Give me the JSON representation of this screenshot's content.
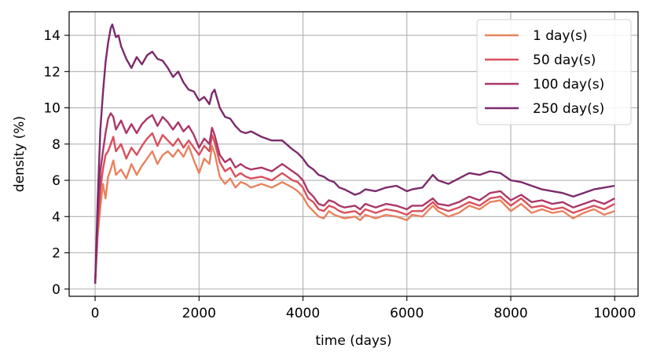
{
  "chart_data": {
    "type": "line",
    "xlabel": "time (days)",
    "ylabel": "density (%)",
    "xlim": [
      -500,
      10450
    ],
    "ylim": [
      -0.4,
      15.3
    ],
    "xticks": [
      0,
      2000,
      4000,
      6000,
      8000,
      10000
    ],
    "yticks": [
      0,
      2,
      4,
      6,
      8,
      10,
      12,
      14
    ],
    "grid": true,
    "legend_position": "top-right",
    "series": [
      {
        "name": "1 day(s)",
        "color": "#e8825f",
        "points": [
          [
            0,
            0.3
          ],
          [
            50,
            3.0
          ],
          [
            100,
            4.5
          ],
          [
            150,
            5.8
          ],
          [
            200,
            5.0
          ],
          [
            250,
            6.2
          ],
          [
            300,
            6.6
          ],
          [
            350,
            7.1
          ],
          [
            400,
            6.3
          ],
          [
            500,
            6.6
          ],
          [
            600,
            6.1
          ],
          [
            700,
            6.9
          ],
          [
            800,
            6.3
          ],
          [
            900,
            6.8
          ],
          [
            1000,
            7.2
          ],
          [
            1100,
            7.6
          ],
          [
            1200,
            6.9
          ],
          [
            1300,
            7.4
          ],
          [
            1400,
            7.6
          ],
          [
            1500,
            7.3
          ],
          [
            1600,
            7.7
          ],
          [
            1700,
            7.3
          ],
          [
            1800,
            7.9
          ],
          [
            1900,
            7.1
          ],
          [
            2000,
            6.4
          ],
          [
            2100,
            7.2
          ],
          [
            2200,
            6.9
          ],
          [
            2250,
            7.9
          ],
          [
            2300,
            7.5
          ],
          [
            2400,
            6.2
          ],
          [
            2500,
            5.8
          ],
          [
            2600,
            6.1
          ],
          [
            2700,
            5.6
          ],
          [
            2800,
            5.9
          ],
          [
            2900,
            5.8
          ],
          [
            3000,
            5.6
          ],
          [
            3200,
            5.8
          ],
          [
            3400,
            5.6
          ],
          [
            3600,
            5.9
          ],
          [
            3800,
            5.6
          ],
          [
            3900,
            5.4
          ],
          [
            4000,
            5.1
          ],
          [
            4100,
            4.6
          ],
          [
            4200,
            4.3
          ],
          [
            4300,
            4.0
          ],
          [
            4400,
            3.9
          ],
          [
            4500,
            4.3
          ],
          [
            4600,
            4.1
          ],
          [
            4700,
            4.0
          ],
          [
            4800,
            3.9
          ],
          [
            5000,
            4.0
          ],
          [
            5100,
            3.8
          ],
          [
            5200,
            4.1
          ],
          [
            5400,
            3.9
          ],
          [
            5600,
            4.1
          ],
          [
            5800,
            4.0
          ],
          [
            6000,
            3.8
          ],
          [
            6100,
            4.1
          ],
          [
            6300,
            4.0
          ],
          [
            6500,
            4.6
          ],
          [
            6600,
            4.3
          ],
          [
            6800,
            4.0
          ],
          [
            7000,
            4.2
          ],
          [
            7200,
            4.6
          ],
          [
            7400,
            4.4
          ],
          [
            7600,
            4.8
          ],
          [
            7800,
            4.9
          ],
          [
            8000,
            4.3
          ],
          [
            8200,
            4.7
          ],
          [
            8400,
            4.2
          ],
          [
            8600,
            4.4
          ],
          [
            8800,
            4.2
          ],
          [
            9000,
            4.3
          ],
          [
            9200,
            3.9
          ],
          [
            9400,
            4.2
          ],
          [
            9600,
            4.4
          ],
          [
            9800,
            4.1
          ],
          [
            10000,
            4.3
          ]
        ]
      },
      {
        "name": "50 day(s)",
        "color": "#d94f5c",
        "points": [
          [
            0,
            0.3
          ],
          [
            50,
            3.5
          ],
          [
            100,
            5.5
          ],
          [
            150,
            6.6
          ],
          [
            200,
            7.4
          ],
          [
            250,
            7.6
          ],
          [
            300,
            8.0
          ],
          [
            350,
            8.4
          ],
          [
            400,
            7.6
          ],
          [
            500,
            8.0
          ],
          [
            600,
            7.2
          ],
          [
            700,
            7.8
          ],
          [
            800,
            7.4
          ],
          [
            900,
            7.9
          ],
          [
            1000,
            8.3
          ],
          [
            1100,
            8.6
          ],
          [
            1200,
            7.9
          ],
          [
            1300,
            8.5
          ],
          [
            1400,
            8.2
          ],
          [
            1500,
            7.9
          ],
          [
            1600,
            8.3
          ],
          [
            1700,
            7.8
          ],
          [
            1800,
            8.2
          ],
          [
            1900,
            7.8
          ],
          [
            2000,
            7.4
          ],
          [
            2100,
            7.9
          ],
          [
            2200,
            7.6
          ],
          [
            2250,
            8.5
          ],
          [
            2300,
            8.1
          ],
          [
            2400,
            7.0
          ],
          [
            2500,
            6.5
          ],
          [
            2600,
            6.7
          ],
          [
            2700,
            6.2
          ],
          [
            2800,
            6.4
          ],
          [
            2900,
            6.2
          ],
          [
            3000,
            6.1
          ],
          [
            3200,
            6.2
          ],
          [
            3400,
            6.0
          ],
          [
            3600,
            6.4
          ],
          [
            3800,
            6.0
          ],
          [
            3900,
            5.9
          ],
          [
            4000,
            5.6
          ],
          [
            4100,
            5.0
          ],
          [
            4200,
            4.8
          ],
          [
            4300,
            4.4
          ],
          [
            4400,
            4.3
          ],
          [
            4500,
            4.6
          ],
          [
            4600,
            4.5
          ],
          [
            4700,
            4.3
          ],
          [
            4800,
            4.2
          ],
          [
            5000,
            4.3
          ],
          [
            5100,
            4.1
          ],
          [
            5200,
            4.4
          ],
          [
            5400,
            4.2
          ],
          [
            5600,
            4.4
          ],
          [
            5800,
            4.3
          ],
          [
            6000,
            4.1
          ],
          [
            6100,
            4.3
          ],
          [
            6300,
            4.3
          ],
          [
            6500,
            4.8
          ],
          [
            6600,
            4.5
          ],
          [
            6800,
            4.3
          ],
          [
            7000,
            4.5
          ],
          [
            7200,
            4.8
          ],
          [
            7400,
            4.6
          ],
          [
            7600,
            5.0
          ],
          [
            7800,
            5.1
          ],
          [
            8000,
            4.6
          ],
          [
            8200,
            5.0
          ],
          [
            8400,
            4.5
          ],
          [
            8600,
            4.6
          ],
          [
            8800,
            4.4
          ],
          [
            9000,
            4.5
          ],
          [
            9200,
            4.2
          ],
          [
            9400,
            4.4
          ],
          [
            9600,
            4.6
          ],
          [
            9800,
            4.4
          ],
          [
            10000,
            4.7
          ]
        ]
      },
      {
        "name": "100 day(s)",
        "color": "#ab3668",
        "points": [
          [
            0,
            0.3
          ],
          [
            50,
            4.0
          ],
          [
            100,
            6.5
          ],
          [
            150,
            7.6
          ],
          [
            200,
            8.6
          ],
          [
            250,
            9.4
          ],
          [
            300,
            9.7
          ],
          [
            350,
            9.5
          ],
          [
            400,
            8.8
          ],
          [
            500,
            9.3
          ],
          [
            600,
            8.6
          ],
          [
            700,
            9.1
          ],
          [
            800,
            8.6
          ],
          [
            900,
            9.1
          ],
          [
            1000,
            9.4
          ],
          [
            1100,
            9.6
          ],
          [
            1200,
            9.0
          ],
          [
            1300,
            9.5
          ],
          [
            1400,
            9.2
          ],
          [
            1500,
            8.8
          ],
          [
            1600,
            9.2
          ],
          [
            1700,
            8.7
          ],
          [
            1800,
            9.0
          ],
          [
            1900,
            8.5
          ],
          [
            2000,
            7.8
          ],
          [
            2100,
            8.3
          ],
          [
            2200,
            8.0
          ],
          [
            2250,
            8.9
          ],
          [
            2300,
            8.5
          ],
          [
            2400,
            7.4
          ],
          [
            2500,
            7.0
          ],
          [
            2600,
            7.2
          ],
          [
            2700,
            6.7
          ],
          [
            2800,
            6.9
          ],
          [
            2900,
            6.7
          ],
          [
            3000,
            6.6
          ],
          [
            3200,
            6.7
          ],
          [
            3400,
            6.5
          ],
          [
            3600,
            6.9
          ],
          [
            3800,
            6.5
          ],
          [
            3900,
            6.3
          ],
          [
            4000,
            6.0
          ],
          [
            4100,
            5.4
          ],
          [
            4200,
            5.1
          ],
          [
            4300,
            4.7
          ],
          [
            4400,
            4.6
          ],
          [
            4500,
            4.9
          ],
          [
            4600,
            4.8
          ],
          [
            4700,
            4.6
          ],
          [
            4800,
            4.5
          ],
          [
            5000,
            4.6
          ],
          [
            5100,
            4.4
          ],
          [
            5200,
            4.7
          ],
          [
            5400,
            4.5
          ],
          [
            5600,
            4.7
          ],
          [
            5800,
            4.6
          ],
          [
            6000,
            4.4
          ],
          [
            6100,
            4.6
          ],
          [
            6300,
            4.6
          ],
          [
            6500,
            5.0
          ],
          [
            6600,
            4.7
          ],
          [
            6800,
            4.6
          ],
          [
            7000,
            4.8
          ],
          [
            7200,
            5.1
          ],
          [
            7400,
            4.9
          ],
          [
            7600,
            5.3
          ],
          [
            7800,
            5.4
          ],
          [
            8000,
            4.9
          ],
          [
            8200,
            5.2
          ],
          [
            8400,
            4.8
          ],
          [
            8600,
            4.9
          ],
          [
            8800,
            4.7
          ],
          [
            9000,
            4.8
          ],
          [
            9200,
            4.5
          ],
          [
            9400,
            4.7
          ],
          [
            9600,
            4.9
          ],
          [
            9800,
            4.7
          ],
          [
            10000,
            5.0
          ]
        ]
      },
      {
        "name": "250 day(s)",
        "color": "#7b2a6b",
        "points": [
          [
            0,
            0.3
          ],
          [
            50,
            5.0
          ],
          [
            100,
            8.8
          ],
          [
            150,
            10.8
          ],
          [
            200,
            12.5
          ],
          [
            250,
            13.6
          ],
          [
            300,
            14.4
          ],
          [
            330,
            14.6
          ],
          [
            350,
            14.4
          ],
          [
            400,
            13.9
          ],
          [
            450,
            14.0
          ],
          [
            500,
            13.4
          ],
          [
            600,
            12.7
          ],
          [
            700,
            12.2
          ],
          [
            800,
            12.8
          ],
          [
            900,
            12.4
          ],
          [
            1000,
            12.9
          ],
          [
            1100,
            13.1
          ],
          [
            1200,
            12.7
          ],
          [
            1300,
            12.6
          ],
          [
            1400,
            12.2
          ],
          [
            1500,
            11.7
          ],
          [
            1600,
            12.0
          ],
          [
            1700,
            11.4
          ],
          [
            1800,
            11.0
          ],
          [
            1900,
            10.9
          ],
          [
            2000,
            10.4
          ],
          [
            2100,
            10.6
          ],
          [
            2200,
            10.2
          ],
          [
            2250,
            10.8
          ],
          [
            2300,
            11.0
          ],
          [
            2400,
            10.0
          ],
          [
            2500,
            9.5
          ],
          [
            2600,
            9.4
          ],
          [
            2700,
            9.0
          ],
          [
            2800,
            8.7
          ],
          [
            2900,
            8.6
          ],
          [
            3000,
            8.7
          ],
          [
            3200,
            8.4
          ],
          [
            3400,
            8.2
          ],
          [
            3600,
            8.2
          ],
          [
            3800,
            7.7
          ],
          [
            3900,
            7.5
          ],
          [
            4000,
            7.2
          ],
          [
            4100,
            6.8
          ],
          [
            4200,
            6.6
          ],
          [
            4300,
            6.3
          ],
          [
            4400,
            6.2
          ],
          [
            4500,
            6.0
          ],
          [
            4600,
            5.9
          ],
          [
            4700,
            5.6
          ],
          [
            4800,
            5.5
          ],
          [
            5000,
            5.2
          ],
          [
            5100,
            5.3
          ],
          [
            5200,
            5.5
          ],
          [
            5400,
            5.4
          ],
          [
            5600,
            5.6
          ],
          [
            5800,
            5.7
          ],
          [
            6000,
            5.4
          ],
          [
            6100,
            5.5
          ],
          [
            6300,
            5.6
          ],
          [
            6500,
            6.3
          ],
          [
            6600,
            6.0
          ],
          [
            6800,
            5.8
          ],
          [
            7000,
            6.1
          ],
          [
            7200,
            6.4
          ],
          [
            7400,
            6.3
          ],
          [
            7600,
            6.5
          ],
          [
            7800,
            6.4
          ],
          [
            8000,
            6.0
          ],
          [
            8200,
            5.9
          ],
          [
            8400,
            5.7
          ],
          [
            8600,
            5.5
          ],
          [
            8800,
            5.4
          ],
          [
            9000,
            5.3
          ],
          [
            9200,
            5.1
          ],
          [
            9400,
            5.3
          ],
          [
            9600,
            5.5
          ],
          [
            9800,
            5.6
          ],
          [
            10000,
            5.7
          ]
        ]
      }
    ]
  }
}
